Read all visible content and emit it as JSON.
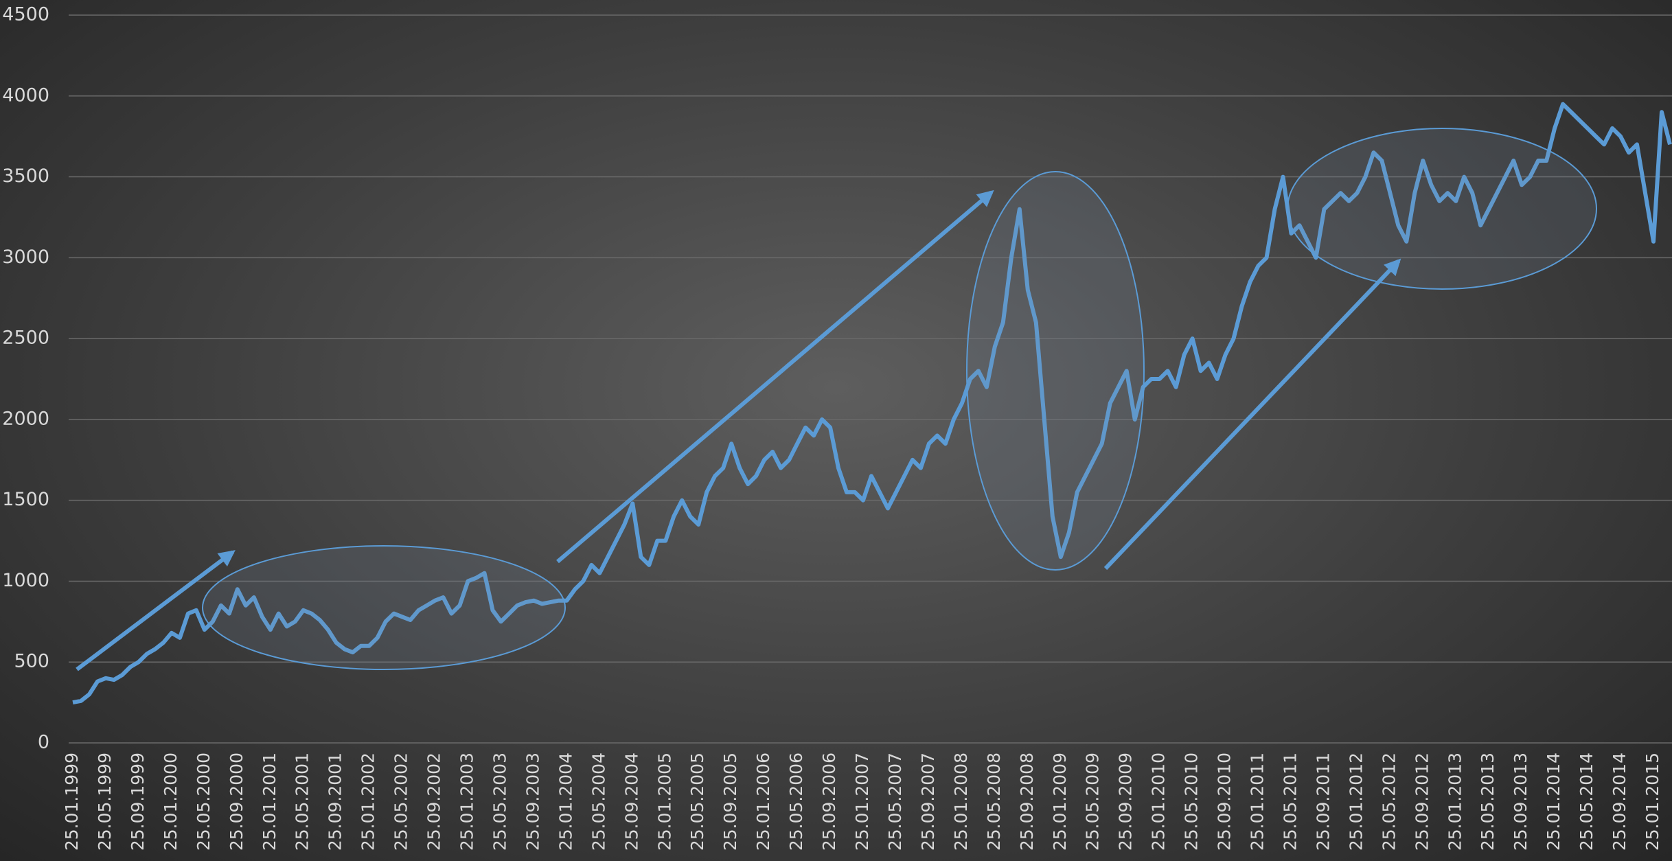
{
  "chart_data": {
    "type": "line",
    "categories": [
      "25.01.1999",
      null,
      null,
      null,
      "25.05.1999",
      null,
      null,
      null,
      "25.09.1999",
      null,
      null,
      null,
      "25.01.2000",
      null,
      null,
      null,
      "25.05.2000",
      null,
      null,
      null,
      "25.09.2000",
      null,
      null,
      null,
      "25.01.2001",
      null,
      null,
      null,
      "25.05.2001",
      null,
      null,
      null,
      "25.09.2001",
      null,
      null,
      null,
      "25.01.2002",
      null,
      null,
      null,
      "25.05.2002",
      null,
      null,
      null,
      "25.09.2002",
      null,
      null,
      null,
      "25.01.2003",
      null,
      null,
      null,
      "25.05.2003",
      null,
      null,
      null,
      "25.09.2003",
      null,
      null,
      null,
      "25.01.2004",
      null,
      null,
      null,
      "25.05.2004",
      null,
      null,
      null,
      "25.09.2004",
      null,
      null,
      null,
      "25.01.2005",
      null,
      null,
      null,
      "25.05.2005",
      null,
      null,
      null,
      "25.09.2005",
      null,
      null,
      null,
      "25.01.2006",
      null,
      null,
      null,
      "25.05.2006",
      null,
      null,
      null,
      "25.09.2006",
      null,
      null,
      null,
      "25.01.2007",
      null,
      null,
      null,
      "25.05.2007",
      null,
      null,
      null,
      "25.09.2007",
      null,
      null,
      null,
      "25.01.2008",
      null,
      null,
      null,
      "25.05.2008",
      null,
      null,
      null,
      "25.09.2008",
      null,
      null,
      null,
      "25.01.2009",
      null,
      null,
      null,
      "25.05.2009",
      null,
      null,
      null,
      "25.09.2009",
      null,
      null,
      null,
      "25.01.2010",
      null,
      null,
      null,
      "25.05.2010",
      null,
      null,
      null,
      "25.09.2010",
      null,
      null,
      null,
      "25.01.2011",
      null,
      null,
      null,
      "25.05.2011",
      null,
      null,
      null,
      "25.09.2011",
      null,
      null,
      null,
      "25.01.2012",
      null,
      null,
      null,
      "25.05.2012",
      null,
      null,
      null,
      "25.09.2012",
      null,
      null,
      null,
      "25.01.2013",
      null,
      null,
      null,
      "25.05.2013",
      null,
      null,
      null,
      "25.09.2013",
      null,
      null,
      null,
      "25.01.2014",
      null,
      null,
      null,
      "25.05.2014",
      null,
      null,
      null,
      "25.09.2014",
      null,
      null,
      null,
      "25.01.2015",
      null,
      null
    ],
    "series": [
      {
        "color": "#5b9bd5",
        "values": [
          250,
          260,
          300,
          380,
          400,
          390,
          420,
          470,
          500,
          550,
          580,
          620,
          680,
          650,
          800,
          820,
          700,
          750,
          850,
          800,
          950,
          850,
          900,
          780,
          700,
          800,
          720,
          750,
          820,
          800,
          760,
          700,
          620,
          580,
          560,
          600,
          600,
          650,
          750,
          800,
          780,
          760,
          820,
          850,
          880,
          900,
          800,
          850,
          1000,
          1020,
          1050,
          820,
          750,
          800,
          850,
          870,
          880,
          860,
          870,
          880,
          880,
          950,
          1000,
          1100,
          1050,
          1150,
          1250,
          1350,
          1480,
          1150,
          1100,
          1250,
          1250,
          1400,
          1500,
          1400,
          1350,
          1550,
          1650,
          1700,
          1850,
          1700,
          1600,
          1650,
          1750,
          1800,
          1700,
          1750,
          1850,
          1950,
          1900,
          2000,
          1950,
          1700,
          1550,
          1550,
          1500,
          1650,
          1550,
          1450,
          1550,
          1650,
          1750,
          1700,
          1850,
          1900,
          1850,
          2000,
          2100,
          2250,
          2300,
          2200,
          2450,
          2600,
          3000,
          3300,
          2800,
          2600,
          2000,
          1400,
          1150,
          1300,
          1550,
          1650,
          1750,
          1850,
          2100,
          2200,
          2300,
          2000,
          2200,
          2250,
          2250,
          2300,
          2200,
          2400,
          2500,
          2300,
          2350,
          2250,
          2400,
          2500,
          2700,
          2850,
          2950,
          3000,
          3300,
          3500,
          3150,
          3200,
          3100,
          3000,
          3300,
          3350,
          3400,
          3350,
          3400,
          3500,
          3650,
          3600,
          3400,
          3200,
          3100,
          3400,
          3600,
          3450,
          3350,
          3400,
          3350,
          3500,
          3400,
          3200,
          3300,
          3400,
          3500,
          3600,
          3450,
          3500,
          3600,
          3600,
          3800,
          3950,
          3900,
          3850,
          3800,
          3750,
          3700,
          3800,
          3750,
          3650,
          3700,
          3400,
          3100,
          3900,
          3700
        ]
      }
    ],
    "ylim": [
      0,
      4500
    ],
    "yticks": [
      0,
      500,
      1000,
      1500,
      2000,
      2500,
      3000,
      3500,
      4000,
      4500
    ],
    "grid": true
  }
}
